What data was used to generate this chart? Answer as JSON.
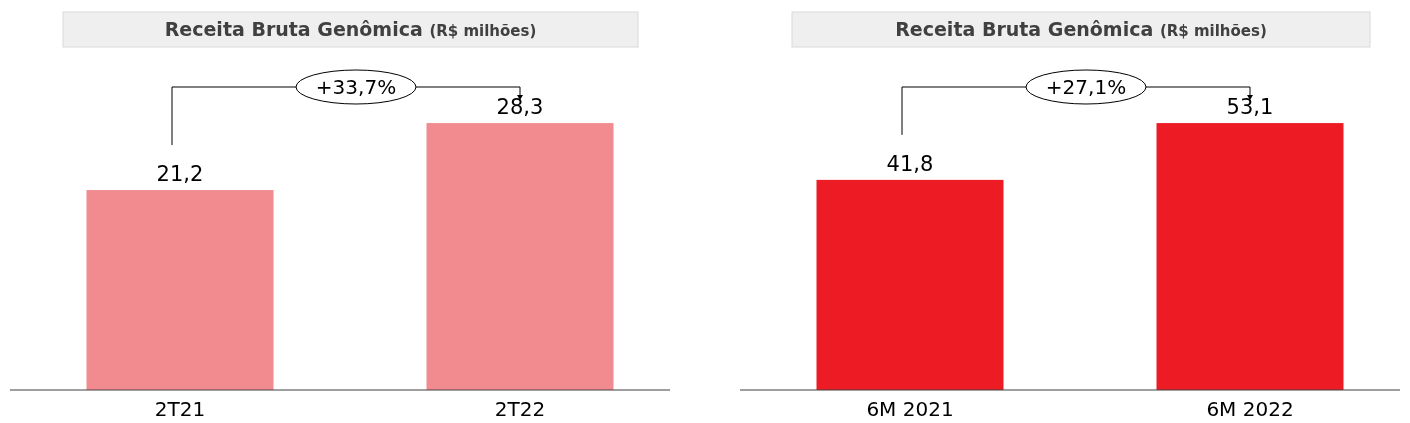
{
  "chart_data": [
    {
      "type": "bar",
      "title": "Receita Bruta Genômica (R$ milhões)",
      "categories": [
        "2T21",
        "2T22"
      ],
      "values": [
        21.2,
        28.3
      ],
      "color": "#f28b90",
      "value_labels": [
        "21,2",
        "28,3"
      ],
      "annotations": [
        "+33,7%"
      ],
      "tick_labels": "x"
    },
    {
      "type": "bar",
      "title": "Receita Bruta Genômica (R$ milhões)",
      "categories": [
        "6M 2021",
        "6M 2022"
      ],
      "values": [
        41.8,
        53.1
      ],
      "color": "#ed1c24",
      "value_labels": [
        "41,8",
        "53,1"
      ],
      "annotations": [
        "+27,1%"
      ],
      "tick_labels": "x"
    }
  ]
}
